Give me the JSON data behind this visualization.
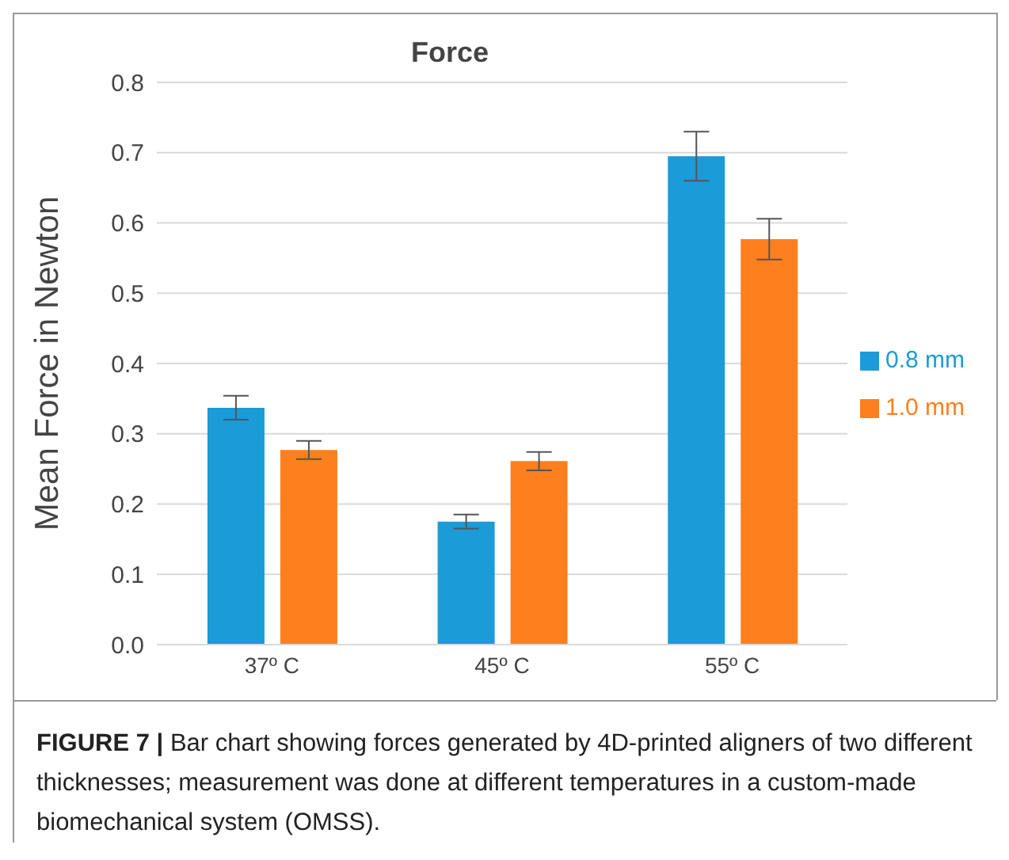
{
  "chart_data": {
    "type": "bar",
    "title": "Force",
    "ylabel": "Mean Force in Newton",
    "categories": [
      "37º C",
      "45º C",
      "55º C"
    ],
    "series": [
      {
        "name": "0.8 mm",
        "color": "#1b9bd7",
        "values": [
          0.337,
          0.175,
          0.695
        ],
        "errors": [
          0.017,
          0.01,
          0.035
        ]
      },
      {
        "name": "1.0 mm",
        "color": "#fd7f1e",
        "values": [
          0.277,
          0.261,
          0.577
        ],
        "errors": [
          0.013,
          0.013,
          0.029
        ]
      }
    ],
    "ylim": [
      0,
      0.8
    ],
    "yticks": [
      "0.0",
      0.1,
      0.2,
      0.3,
      0.4,
      0.5,
      0.6,
      0.7,
      0.8
    ],
    "grid": "y",
    "legend": "right",
    "annotations": [
      "FIGURE 7 | Bar chart showing forces generated by 4D-printed aligners of two different thicknesses; measurement was done at different temperatures in a custom-made biomechanical system (OMSS)."
    ]
  }
}
